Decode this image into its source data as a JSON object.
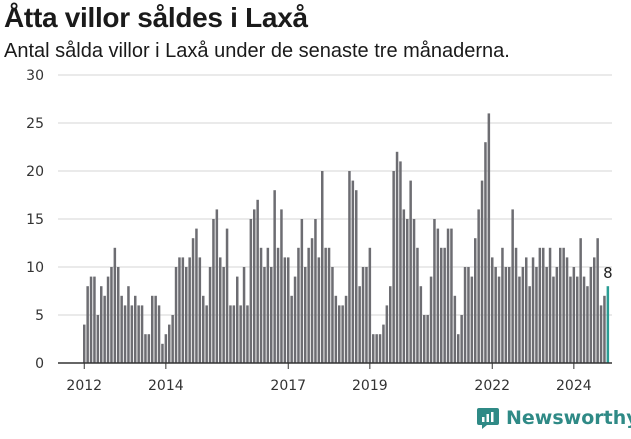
{
  "header": {
    "title": "Åtta villor såldes i Laxå",
    "subtitle": "Antal sålda villor i Laxå under de senaste tre månaderna."
  },
  "brand": {
    "name": "Newsworthy",
    "icon": "newsworthy-logo-icon"
  },
  "colors": {
    "bar": "#6d6d72",
    "highlight": "#2a9d94",
    "grid": "#d4d4d4",
    "axis": "#333333",
    "brand": "#2f8a86"
  },
  "chart_data": {
    "type": "bar",
    "title": "Åtta villor såldes i Laxå",
    "subtitle": "Antal sålda villor i Laxå under de senaste tre månaderna.",
    "x_start": "2012-01",
    "frequency": "monthly",
    "ylim": [
      0,
      30
    ],
    "yticks": [
      0,
      5,
      10,
      15,
      20,
      25,
      30
    ],
    "xticks": [
      {
        "label": "2012",
        "index": 0
      },
      {
        "label": "2014",
        "index": 24
      },
      {
        "label": "2017",
        "index": 60
      },
      {
        "label": "2019",
        "index": 84
      },
      {
        "label": "2022",
        "index": 120
      },
      {
        "label": "2024",
        "index": 144
      }
    ],
    "grid": true,
    "values": [
      4,
      8,
      9,
      9,
      5,
      8,
      7,
      9,
      10,
      12,
      10,
      7,
      6,
      8,
      6,
      7,
      6,
      6,
      3,
      3,
      7,
      7,
      6,
      2,
      3,
      4,
      5,
      10,
      11,
      11,
      10,
      11,
      13,
      14,
      11,
      7,
      6,
      10,
      15,
      16,
      11,
      10,
      14,
      6,
      6,
      9,
      6,
      10,
      6,
      15,
      16,
      17,
      12,
      10,
      12,
      10,
      18,
      12,
      16,
      11,
      11,
      7,
      9,
      12,
      15,
      10,
      12,
      13,
      15,
      11,
      20,
      12,
      12,
      10,
      7,
      6,
      6,
      7,
      20,
      19,
      18,
      8,
      10,
      10,
      12,
      3,
      3,
      3,
      4,
      6,
      8,
      20,
      22,
      21,
      16,
      15,
      19,
      15,
      12,
      8,
      5,
      5,
      9,
      15,
      14,
      12,
      12,
      14,
      14,
      7,
      3,
      5,
      10,
      10,
      9,
      13,
      16,
      19,
      23,
      26,
      11,
      10,
      9,
      12,
      10,
      10,
      16,
      12,
      9,
      10,
      11,
      8,
      11,
      10,
      12,
      12,
      10,
      12,
      9,
      10,
      12,
      12,
      11,
      9,
      10,
      9,
      13,
      9,
      8,
      10,
      11,
      13,
      6,
      7,
      8
    ],
    "highlight_last": true,
    "last_value_label": "8"
  }
}
